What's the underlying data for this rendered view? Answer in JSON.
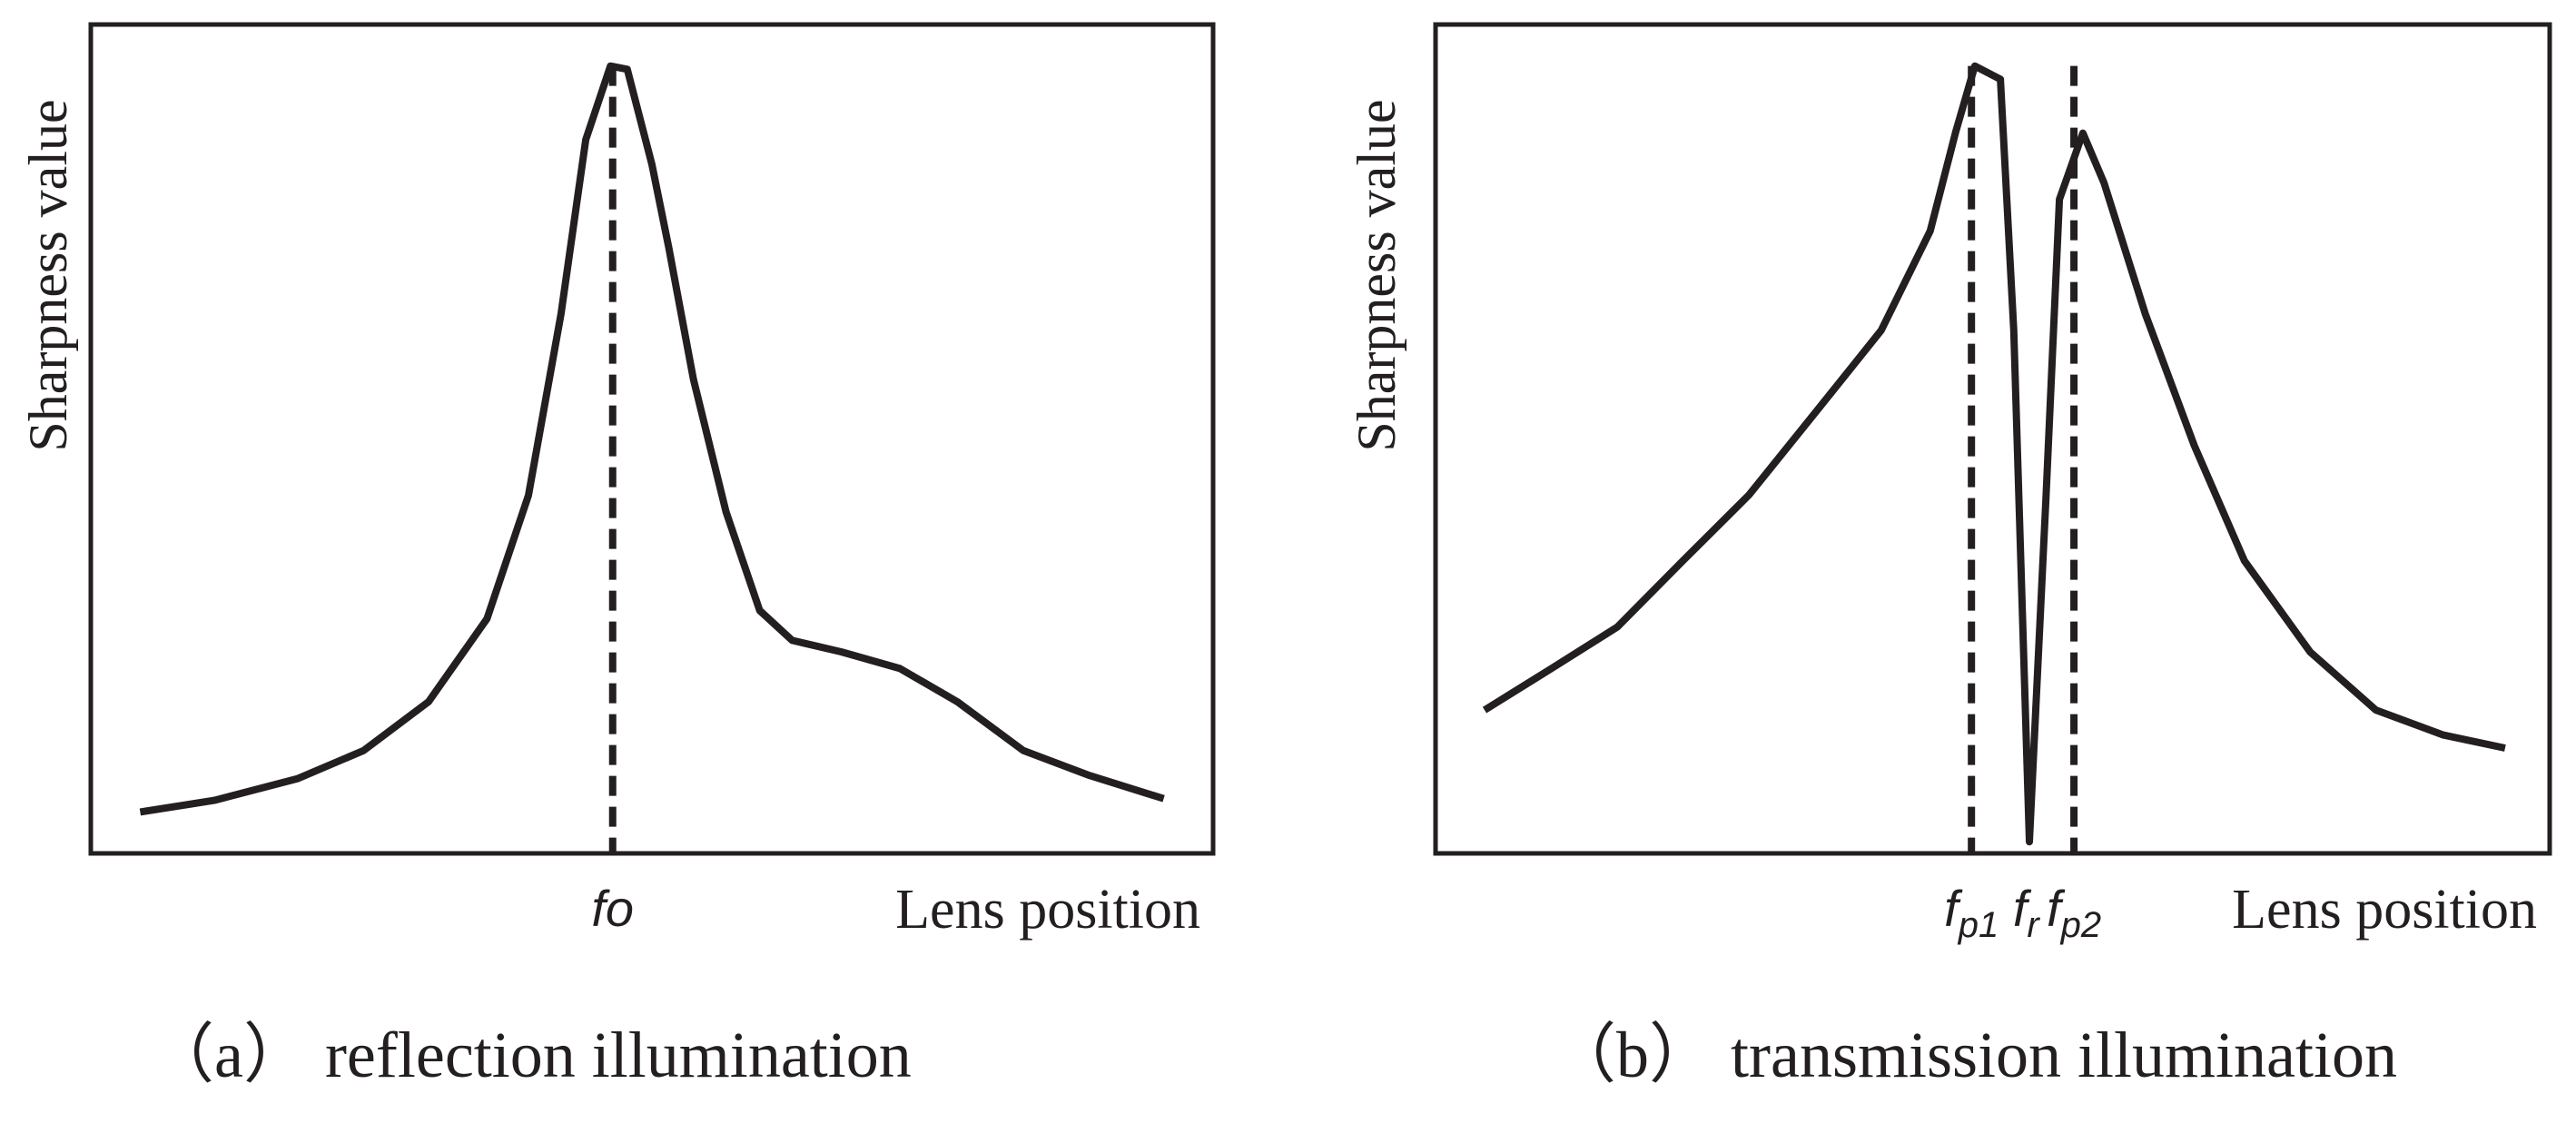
{
  "chart_data": [
    {
      "type": "line",
      "ylabel": "Sharpness value",
      "xlabel": "Lens position",
      "caption": "（a）  reflection illumination",
      "xlim": [
        0,
        100
      ],
      "ylim": [
        0,
        100
      ],
      "color": "#231f20",
      "x": [
        4.4,
        11,
        18.4,
        24.3,
        30.1,
        35.3,
        39,
        41.9,
        44.1,
        46.3,
        47.8,
        50,
        51.5,
        53.7,
        56.6,
        59.6,
        62.5,
        66.9,
        72.1,
        77.2,
        83.1,
        89,
        95.6
      ],
      "values": [
        5,
        6.4,
        9,
        12.4,
        18.3,
        28.3,
        43.2,
        65.1,
        86.1,
        95,
        94.6,
        83.1,
        73.1,
        57.2,
        41.2,
        29.3,
        25.7,
        24.3,
        22.3,
        18.3,
        12.4,
        9.4,
        6.6
      ],
      "annotations": [
        {
          "text": "fo",
          "x": 46.5,
          "dashed": true
        }
      ]
    },
    {
      "type": "line",
      "ylabel": "Sharpness value",
      "xlabel": "Lens position",
      "caption": "（b）  transmission illumination",
      "xlim": [
        0,
        100
      ],
      "ylim": [
        0,
        100
      ],
      "color": "#231f20",
      "x": [
        4.4,
        10.4,
        16.3,
        22.2,
        28.1,
        34.1,
        40,
        44.4,
        46.7,
        48.4,
        50.7,
        51.9,
        53.3,
        54.8,
        56,
        58.1,
        60,
        63.7,
        68.1,
        72.6,
        78.5,
        84.4,
        90.4,
        96
      ],
      "values": [
        17.3,
        22.3,
        27.3,
        35.3,
        43.2,
        53.2,
        63.1,
        75.1,
        87.1,
        95,
        93.4,
        63.1,
        1.4,
        43.2,
        78.9,
        86.9,
        80.9,
        65.1,
        49.2,
        35.3,
        24.3,
        17.3,
        14.3,
        12.7
      ],
      "annotations": [
        {
          "text": "f",
          "sub": "p1",
          "x": 48.1,
          "dashed": true
        },
        {
          "text": "f",
          "sub": "r",
          "x": 53,
          "dashed": false
        },
        {
          "text": "f",
          "sub": "p2",
          "x": 57.3,
          "dashed": true
        }
      ]
    }
  ]
}
